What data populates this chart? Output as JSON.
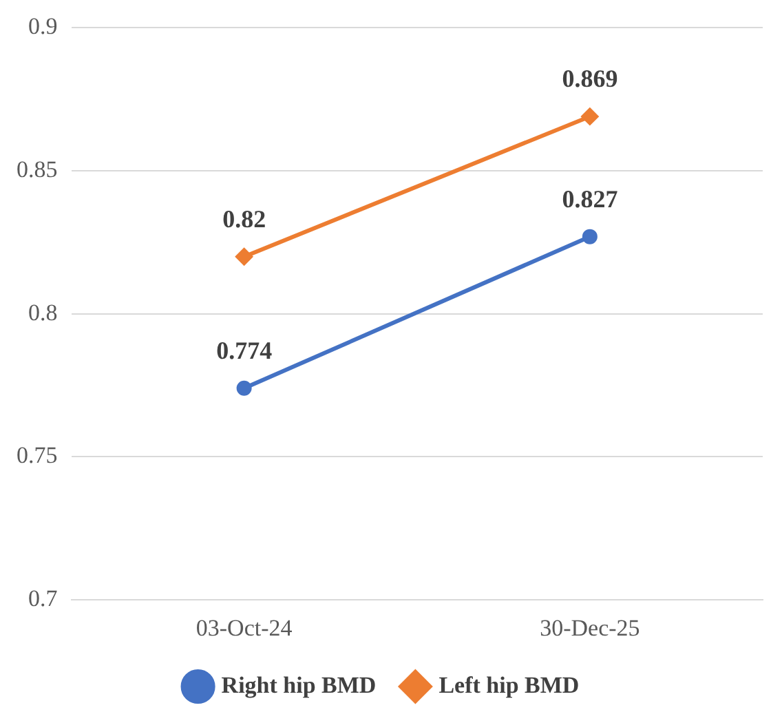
{
  "chart_data": {
    "type": "line",
    "categories": [
      "03-Oct-24",
      "30-Dec-25"
    ],
    "series": [
      {
        "name": "Right hip BMD",
        "color": "#4472c4",
        "marker": "circle",
        "values": [
          0.774,
          0.827
        ]
      },
      {
        "name": "Left hip BMD",
        "color": "#ed7d31",
        "marker": "diamond",
        "values": [
          0.82,
          0.869
        ]
      }
    ],
    "ylim": [
      0.7,
      0.9
    ],
    "yticks": [
      0.7,
      0.75,
      0.8,
      0.85,
      0.9
    ],
    "grid": "y",
    "legend": "bottom",
    "data_labels": true
  }
}
